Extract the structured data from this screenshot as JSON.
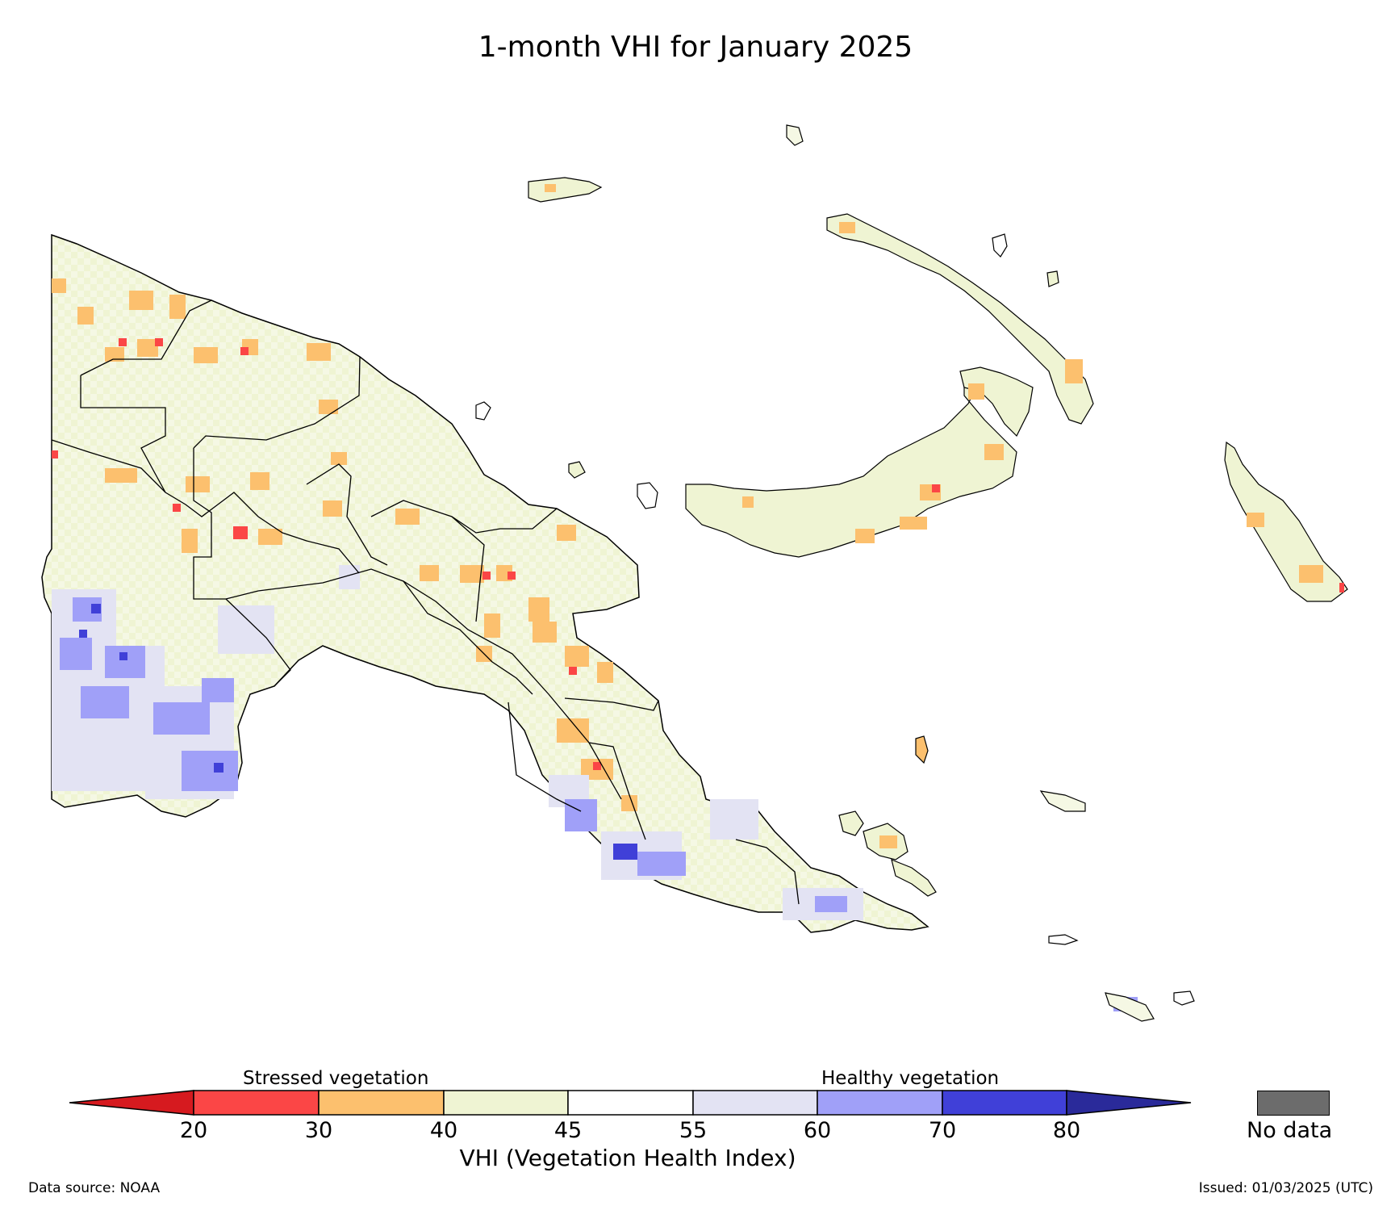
{
  "title": "1-month VHI for January 2025",
  "legend": {
    "stressed_label": "Stressed vegetation",
    "healthy_label": "Healthy vegetation",
    "axis_label": "VHI (Vegetation Health Index)",
    "no_data_label": "No data",
    "ticks": [
      "20",
      "30",
      "40",
      "45",
      "55",
      "60",
      "70",
      "80"
    ],
    "under_color": "#d61a1f",
    "over_color": "#2a2a9a",
    "bins": [
      {
        "range": "20-30",
        "color": "#fb4646"
      },
      {
        "range": "30-40",
        "color": "#fcc06e"
      },
      {
        "range": "40-45",
        "color": "#eff4d3"
      },
      {
        "range": "45-55",
        "color": "#ffffff"
      },
      {
        "range": "55-60",
        "color": "#e3e3f3"
      },
      {
        "range": "60-70",
        "color": "#a0a0f8"
      },
      {
        "range": "70-80",
        "color": "#4040d8"
      }
    ],
    "no_data_color": "#6c6c6c"
  },
  "footer": {
    "source": "Data source: NOAA",
    "issued": "Issued: 01/03/2025 (UTC)"
  }
}
